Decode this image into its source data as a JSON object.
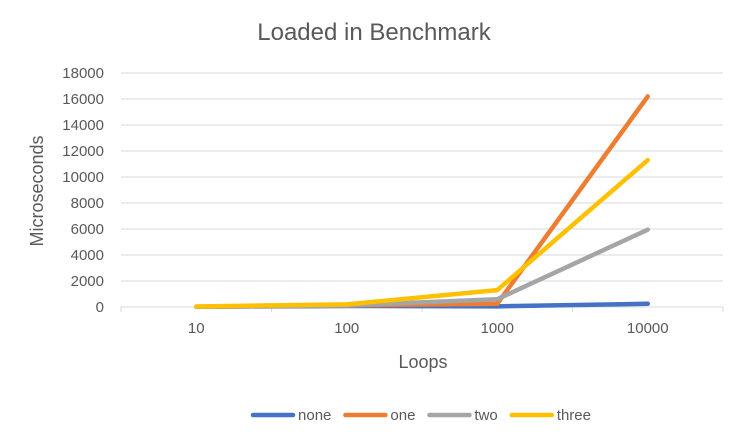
{
  "chart_data": {
    "type": "line",
    "title": "Loaded in Benchmark",
    "xlabel": "Loops",
    "ylabel": "Microseconds",
    "categories": [
      "10",
      "100",
      "1000",
      "10000"
    ],
    "ylim": [
      0,
      18000
    ],
    "yticks": [
      "0",
      "2000",
      "4000",
      "6000",
      "8000",
      "10000",
      "12000",
      "14000",
      "16000",
      "18000"
    ],
    "grid": true,
    "legend_position": "bottom",
    "series": [
      {
        "name": "none",
        "color": "#4472C4",
        "values": [
          20,
          80,
          50,
          250
        ]
      },
      {
        "name": "one",
        "color": "#ED7D31",
        "values": [
          20,
          120,
          250,
          16200
        ]
      },
      {
        "name": "two",
        "color": "#A5A5A5",
        "values": [
          20,
          120,
          600,
          5950
        ]
      },
      {
        "name": "three",
        "color": "#FFC000",
        "values": [
          40,
          200,
          1300,
          11300
        ]
      }
    ]
  }
}
